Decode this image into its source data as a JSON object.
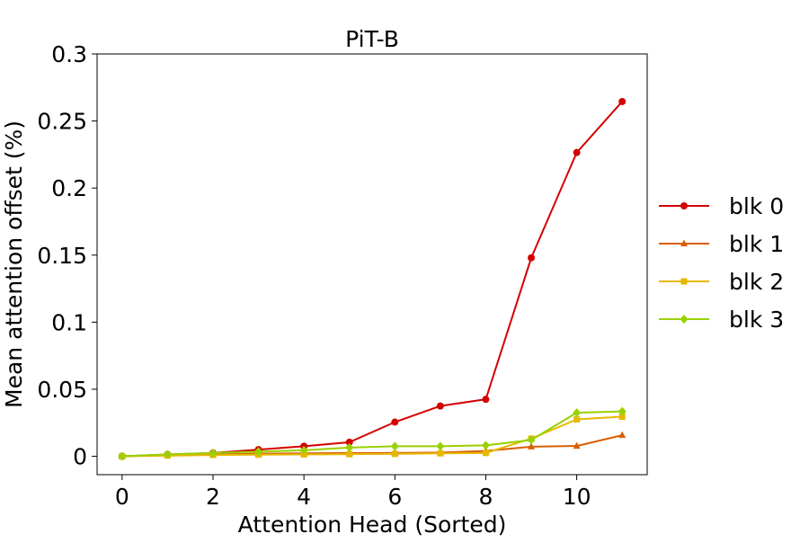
{
  "chart_data": {
    "type": "line",
    "title": "PiT-B",
    "xlabel": "Attention Head (Sorted)",
    "ylabel": "Mean attention offset (%)",
    "xlim": [
      -0.55,
      11.55
    ],
    "ylim": [
      -0.0137,
      0.3
    ],
    "x_ticks": [
      0,
      2,
      4,
      6,
      8,
      10
    ],
    "x_tick_labels": [
      "0",
      "2",
      "4",
      "6",
      "8",
      "10"
    ],
    "y_ticks": [
      0,
      0.05,
      0.1,
      0.15,
      0.2,
      0.25,
      0.3
    ],
    "y_tick_labels": [
      "0",
      "0.05",
      "0.1",
      "0.15",
      "0.2",
      "0.25",
      "0.3"
    ],
    "grid": false,
    "legend_position": "right",
    "x": [
      0,
      1,
      2,
      3,
      4,
      5,
      6,
      7,
      8,
      9,
      10,
      11
    ],
    "series": [
      {
        "name": "blk 0",
        "color": "#d40000",
        "marker": "circle",
        "values": [
          0.0,
          0.0013,
          0.0025,
          0.005,
          0.0075,
          0.0105,
          0.0255,
          0.0375,
          0.0425,
          0.148,
          0.2265,
          0.2645
        ]
      },
      {
        "name": "blk 1",
        "color": "#d95f02",
        "marker": "triangle",
        "values": [
          0.0,
          0.001,
          0.0015,
          0.002,
          0.0022,
          0.0024,
          0.0025,
          0.0028,
          0.004,
          0.0072,
          0.0077,
          0.0157
        ]
      },
      {
        "name": "blk 2",
        "color": "#e6b800",
        "marker": "square",
        "values": [
          0.0,
          0.0005,
          0.001,
          0.0012,
          0.0014,
          0.0016,
          0.0018,
          0.0022,
          0.0025,
          0.0132,
          0.0275,
          0.0295
        ]
      },
      {
        "name": "blk 3",
        "color": "#99d100",
        "marker": "diamond",
        "values": [
          0.0,
          0.0015,
          0.0025,
          0.0035,
          0.0045,
          0.0065,
          0.0075,
          0.0075,
          0.0082,
          0.0122,
          0.0325,
          0.0335
        ]
      }
    ]
  }
}
